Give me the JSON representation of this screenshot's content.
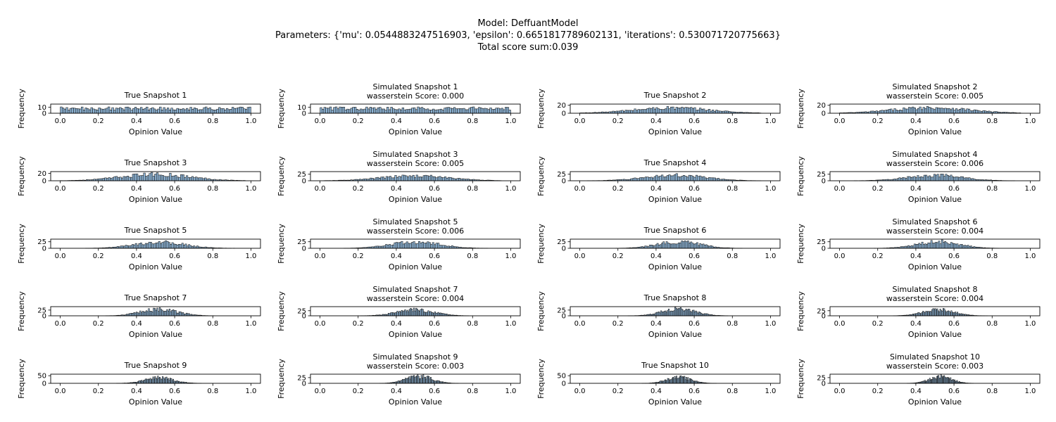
{
  "figure": {
    "title_lines": [
      "Model: DeffuantModel",
      "Parameters: {'mu': 0.0544883247516903, 'epsilon': 0.6651817789602131, 'iterations': 0.530071720775663}",
      "Total score sum:0.039"
    ],
    "bar_color": "#8fb6d8",
    "edge_color": "#1a1a1a"
  },
  "chart_data": [
    {
      "type": "bar",
      "title": "True Snapshot 1",
      "xlabel": "Opinion Value",
      "ylabel": "Frequency",
      "xlim": [
        -0.05,
        1.05
      ],
      "ylim": [
        0,
        15
      ],
      "yticks": [
        0,
        10
      ],
      "xticks": [
        0.0,
        0.2,
        0.4,
        0.6,
        0.8,
        1.0
      ],
      "x_range": [
        0.0,
        1.0
      ],
      "bins": 100,
      "peak_center": 0.5,
      "spread": 0.5,
      "peak_value": 11
    },
    {
      "type": "bar",
      "title": "Simulated Snapshot 1",
      "subtitle": "wasserstein Score: 0.000",
      "xlabel": "Opinion Value",
      "ylabel": "Frequency",
      "xlim": [
        -0.05,
        1.05
      ],
      "ylim": [
        0,
        15
      ],
      "yticks": [
        0,
        10
      ],
      "xticks": [
        0.0,
        0.2,
        0.4,
        0.6,
        0.8,
        1.0
      ],
      "x_range": [
        0.0,
        1.0
      ],
      "bins": 100,
      "peak_center": 0.5,
      "spread": 0.5,
      "peak_value": 11
    },
    {
      "type": "bar",
      "title": "True Snapshot 2",
      "xlabel": "Opinion Value",
      "ylabel": "Frequency",
      "xlim": [
        -0.05,
        1.05
      ],
      "ylim": [
        0,
        23
      ],
      "yticks": [
        0,
        20
      ],
      "xticks": [
        0.0,
        0.2,
        0.4,
        0.6,
        0.8,
        1.0
      ],
      "x_range": [
        0.0,
        0.95
      ],
      "bins": 100,
      "peak_center": 0.48,
      "spread": 0.42,
      "peak_value": 16
    },
    {
      "type": "bar",
      "title": "Simulated Snapshot 2",
      "subtitle": "wasserstein Score: 0.005",
      "xlabel": "Opinion Value",
      "ylabel": "Frequency",
      "xlim": [
        -0.05,
        1.05
      ],
      "ylim": [
        0,
        23
      ],
      "yticks": [
        0,
        20
      ],
      "xticks": [
        0.0,
        0.2,
        0.4,
        0.6,
        0.8,
        1.0
      ],
      "x_range": [
        0.0,
        0.95
      ],
      "bins": 100,
      "peak_center": 0.48,
      "spread": 0.42,
      "peak_value": 17
    },
    {
      "type": "bar",
      "title": "True Snapshot 3",
      "xlabel": "Opinion Value",
      "ylabel": "Frequency",
      "xlim": [
        -0.05,
        1.05
      ],
      "ylim": [
        0,
        25
      ],
      "yticks": [
        0,
        20
      ],
      "xticks": [
        0.0,
        0.2,
        0.4,
        0.6,
        0.8,
        1.0
      ],
      "x_range": [
        0.0,
        0.97
      ],
      "bins": 100,
      "peak_center": 0.5,
      "spread": 0.38,
      "peak_value": 21
    },
    {
      "type": "bar",
      "title": "Simulated Snapshot 3",
      "subtitle": "wasserstein Score: 0.005",
      "xlabel": "Opinion Value",
      "ylabel": "Frequency",
      "xlim": [
        -0.05,
        1.05
      ],
      "ylim": [
        0,
        35
      ],
      "yticks": [
        0,
        25
      ],
      "xticks": [
        0.0,
        0.2,
        0.4,
        0.6,
        0.8,
        1.0
      ],
      "x_range": [
        0.02,
        0.95
      ],
      "bins": 100,
      "peak_center": 0.5,
      "spread": 0.38,
      "peak_value": 22
    },
    {
      "type": "bar",
      "title": "True Snapshot 4",
      "xlabel": "Opinion Value",
      "ylabel": "Frequency",
      "xlim": [
        -0.05,
        1.05
      ],
      "ylim": [
        0,
        35
      ],
      "yticks": [
        0,
        25
      ],
      "xticks": [
        0.0,
        0.2,
        0.4,
        0.6,
        0.8,
        1.0
      ],
      "x_range": [
        0.0,
        0.95
      ],
      "bins": 100,
      "peak_center": 0.5,
      "spread": 0.33,
      "peak_value": 25
    },
    {
      "type": "bar",
      "title": "Simulated Snapshot 4",
      "subtitle": "wasserstein Score: 0.006",
      "xlabel": "Opinion Value",
      "ylabel": "Frequency",
      "xlim": [
        -0.05,
        1.05
      ],
      "ylim": [
        0,
        35
      ],
      "yticks": [
        0,
        25
      ],
      "xticks": [
        0.0,
        0.2,
        0.4,
        0.6,
        0.8,
        1.0
      ],
      "x_range": [
        0.05,
        0.92
      ],
      "bins": 100,
      "peak_center": 0.5,
      "spread": 0.3,
      "peak_value": 25
    },
    {
      "type": "bar",
      "title": "True Snapshot 5",
      "xlabel": "Opinion Value",
      "ylabel": "Frequency",
      "xlim": [
        -0.05,
        1.05
      ],
      "ylim": [
        0,
        35
      ],
      "yticks": [
        0,
        25
      ],
      "xticks": [
        0.0,
        0.2,
        0.4,
        0.6,
        0.8,
        1.0
      ],
      "x_range": [
        0.08,
        0.95
      ],
      "bins": 100,
      "peak_center": 0.52,
      "spread": 0.27,
      "peak_value": 28
    },
    {
      "type": "bar",
      "title": "Simulated Snapshot 5",
      "subtitle": "wasserstein Score: 0.006",
      "xlabel": "Opinion Value",
      "ylabel": "Frequency",
      "xlim": [
        -0.05,
        1.05
      ],
      "ylim": [
        0,
        35
      ],
      "yticks": [
        0,
        25
      ],
      "xticks": [
        0.0,
        0.2,
        0.4,
        0.6,
        0.8,
        1.0
      ],
      "x_range": [
        0.07,
        0.98
      ],
      "bins": 100,
      "peak_center": 0.5,
      "spread": 0.27,
      "peak_value": 28
    },
    {
      "type": "bar",
      "title": "True Snapshot 6",
      "xlabel": "Opinion Value",
      "ylabel": "Frequency",
      "xlim": [
        -0.05,
        1.05
      ],
      "ylim": [
        0,
        35
      ],
      "yticks": [
        0,
        25
      ],
      "xticks": [
        0.0,
        0.2,
        0.4,
        0.6,
        0.8,
        1.0
      ],
      "x_range": [
        0.1,
        0.9
      ],
      "bins": 100,
      "peak_center": 0.52,
      "spread": 0.23,
      "peak_value": 30
    },
    {
      "type": "bar",
      "title": "Simulated Snapshot 6",
      "subtitle": "wasserstein Score: 0.004",
      "xlabel": "Opinion Value",
      "ylabel": "Frequency",
      "xlim": [
        -0.05,
        1.05
      ],
      "ylim": [
        0,
        35
      ],
      "yticks": [
        0,
        25
      ],
      "xticks": [
        0.0,
        0.2,
        0.4,
        0.6,
        0.8,
        1.0
      ],
      "x_range": [
        0.15,
        0.95
      ],
      "bins": 100,
      "peak_center": 0.52,
      "spread": 0.23,
      "peak_value": 30
    },
    {
      "type": "bar",
      "title": "True Snapshot 7",
      "xlabel": "Opinion Value",
      "ylabel": "Frequency",
      "xlim": [
        -0.05,
        1.05
      ],
      "ylim": [
        0,
        40
      ],
      "yticks": [
        0,
        25
      ],
      "xticks": [
        0.0,
        0.2,
        0.4,
        0.6,
        0.8,
        1.0
      ],
      "x_range": [
        0.18,
        0.82
      ],
      "bins": 100,
      "peak_center": 0.52,
      "spread": 0.2,
      "peak_value": 34
    },
    {
      "type": "bar",
      "title": "Simulated Snapshot 7",
      "subtitle": "wasserstein Score: 0.004",
      "xlabel": "Opinion Value",
      "ylabel": "Frequency",
      "xlim": [
        -0.05,
        1.05
      ],
      "ylim": [
        0,
        45
      ],
      "yticks": [
        0,
        25
      ],
      "xticks": [
        0.0,
        0.2,
        0.4,
        0.6,
        0.8,
        1.0
      ],
      "x_range": [
        0.2,
        0.78
      ],
      "bins": 100,
      "peak_center": 0.5,
      "spread": 0.2,
      "peak_value": 35
    },
    {
      "type": "bar",
      "title": "True Snapshot 8",
      "xlabel": "Opinion Value",
      "ylabel": "Frequency",
      "xlim": [
        -0.05,
        1.05
      ],
      "ylim": [
        0,
        40
      ],
      "yticks": [
        0,
        25
      ],
      "xticks": [
        0.0,
        0.2,
        0.4,
        0.6,
        0.8,
        1.0
      ],
      "x_range": [
        0.23,
        0.8
      ],
      "bins": 100,
      "peak_center": 0.52,
      "spread": 0.18,
      "peak_value": 36
    },
    {
      "type": "bar",
      "title": "Simulated Snapshot 8",
      "subtitle": "wasserstein Score: 0.004",
      "xlabel": "Opinion Value",
      "ylabel": "Frequency",
      "xlim": [
        -0.05,
        1.05
      ],
      "ylim": [
        0,
        45
      ],
      "yticks": [
        0,
        25
      ],
      "xticks": [
        0.0,
        0.2,
        0.4,
        0.6,
        0.8,
        1.0
      ],
      "x_range": [
        0.25,
        0.78
      ],
      "bins": 100,
      "peak_center": 0.52,
      "spread": 0.17,
      "peak_value": 35
    },
    {
      "type": "bar",
      "title": "True Snapshot 9",
      "xlabel": "Opinion Value",
      "ylabel": "Frequency",
      "xlim": [
        -0.05,
        1.05
      ],
      "ylim": [
        0,
        60
      ],
      "yticks": [
        0,
        50
      ],
      "xticks": [
        0.0,
        0.2,
        0.4,
        0.6,
        0.8,
        1.0
      ],
      "x_range": [
        0.26,
        0.76
      ],
      "bins": 100,
      "peak_center": 0.52,
      "spread": 0.15,
      "peak_value": 45
    },
    {
      "type": "bar",
      "title": "Simulated Snapshot 9",
      "subtitle": "wasserstein Score: 0.003",
      "xlabel": "Opinion Value",
      "ylabel": "Frequency",
      "xlim": [
        -0.05,
        1.05
      ],
      "ylim": [
        0,
        40
      ],
      "yticks": [
        0,
        25
      ],
      "xticks": [
        0.0,
        0.2,
        0.4,
        0.6,
        0.8,
        1.0
      ],
      "x_range": [
        0.26,
        0.75
      ],
      "bins": 100,
      "peak_center": 0.52,
      "spread": 0.14,
      "peak_value": 37
    },
    {
      "type": "bar",
      "title": "True Snapshot 10",
      "xlabel": "Opinion Value",
      "ylabel": "Frequency",
      "xlim": [
        -0.05,
        1.05
      ],
      "ylim": [
        0,
        60
      ],
      "yticks": [
        0,
        50
      ],
      "xticks": [
        0.0,
        0.2,
        0.4,
        0.6,
        0.8,
        1.0
      ],
      "x_range": [
        0.28,
        0.74
      ],
      "bins": 100,
      "peak_center": 0.52,
      "spread": 0.13,
      "peak_value": 48
    },
    {
      "type": "bar",
      "title": "Simulated Snapshot 10",
      "subtitle": "wasserstein Score: 0.003",
      "xlabel": "Opinion Value",
      "ylabel": "Frequency",
      "xlim": [
        -0.05,
        1.05
      ],
      "ylim": [
        0,
        40
      ],
      "yticks": [
        0,
        25
      ],
      "xticks": [
        0.0,
        0.2,
        0.4,
        0.6,
        0.8,
        1.0
      ],
      "x_range": [
        0.32,
        0.74
      ],
      "bins": 100,
      "peak_center": 0.53,
      "spread": 0.12,
      "peak_value": 36
    }
  ]
}
